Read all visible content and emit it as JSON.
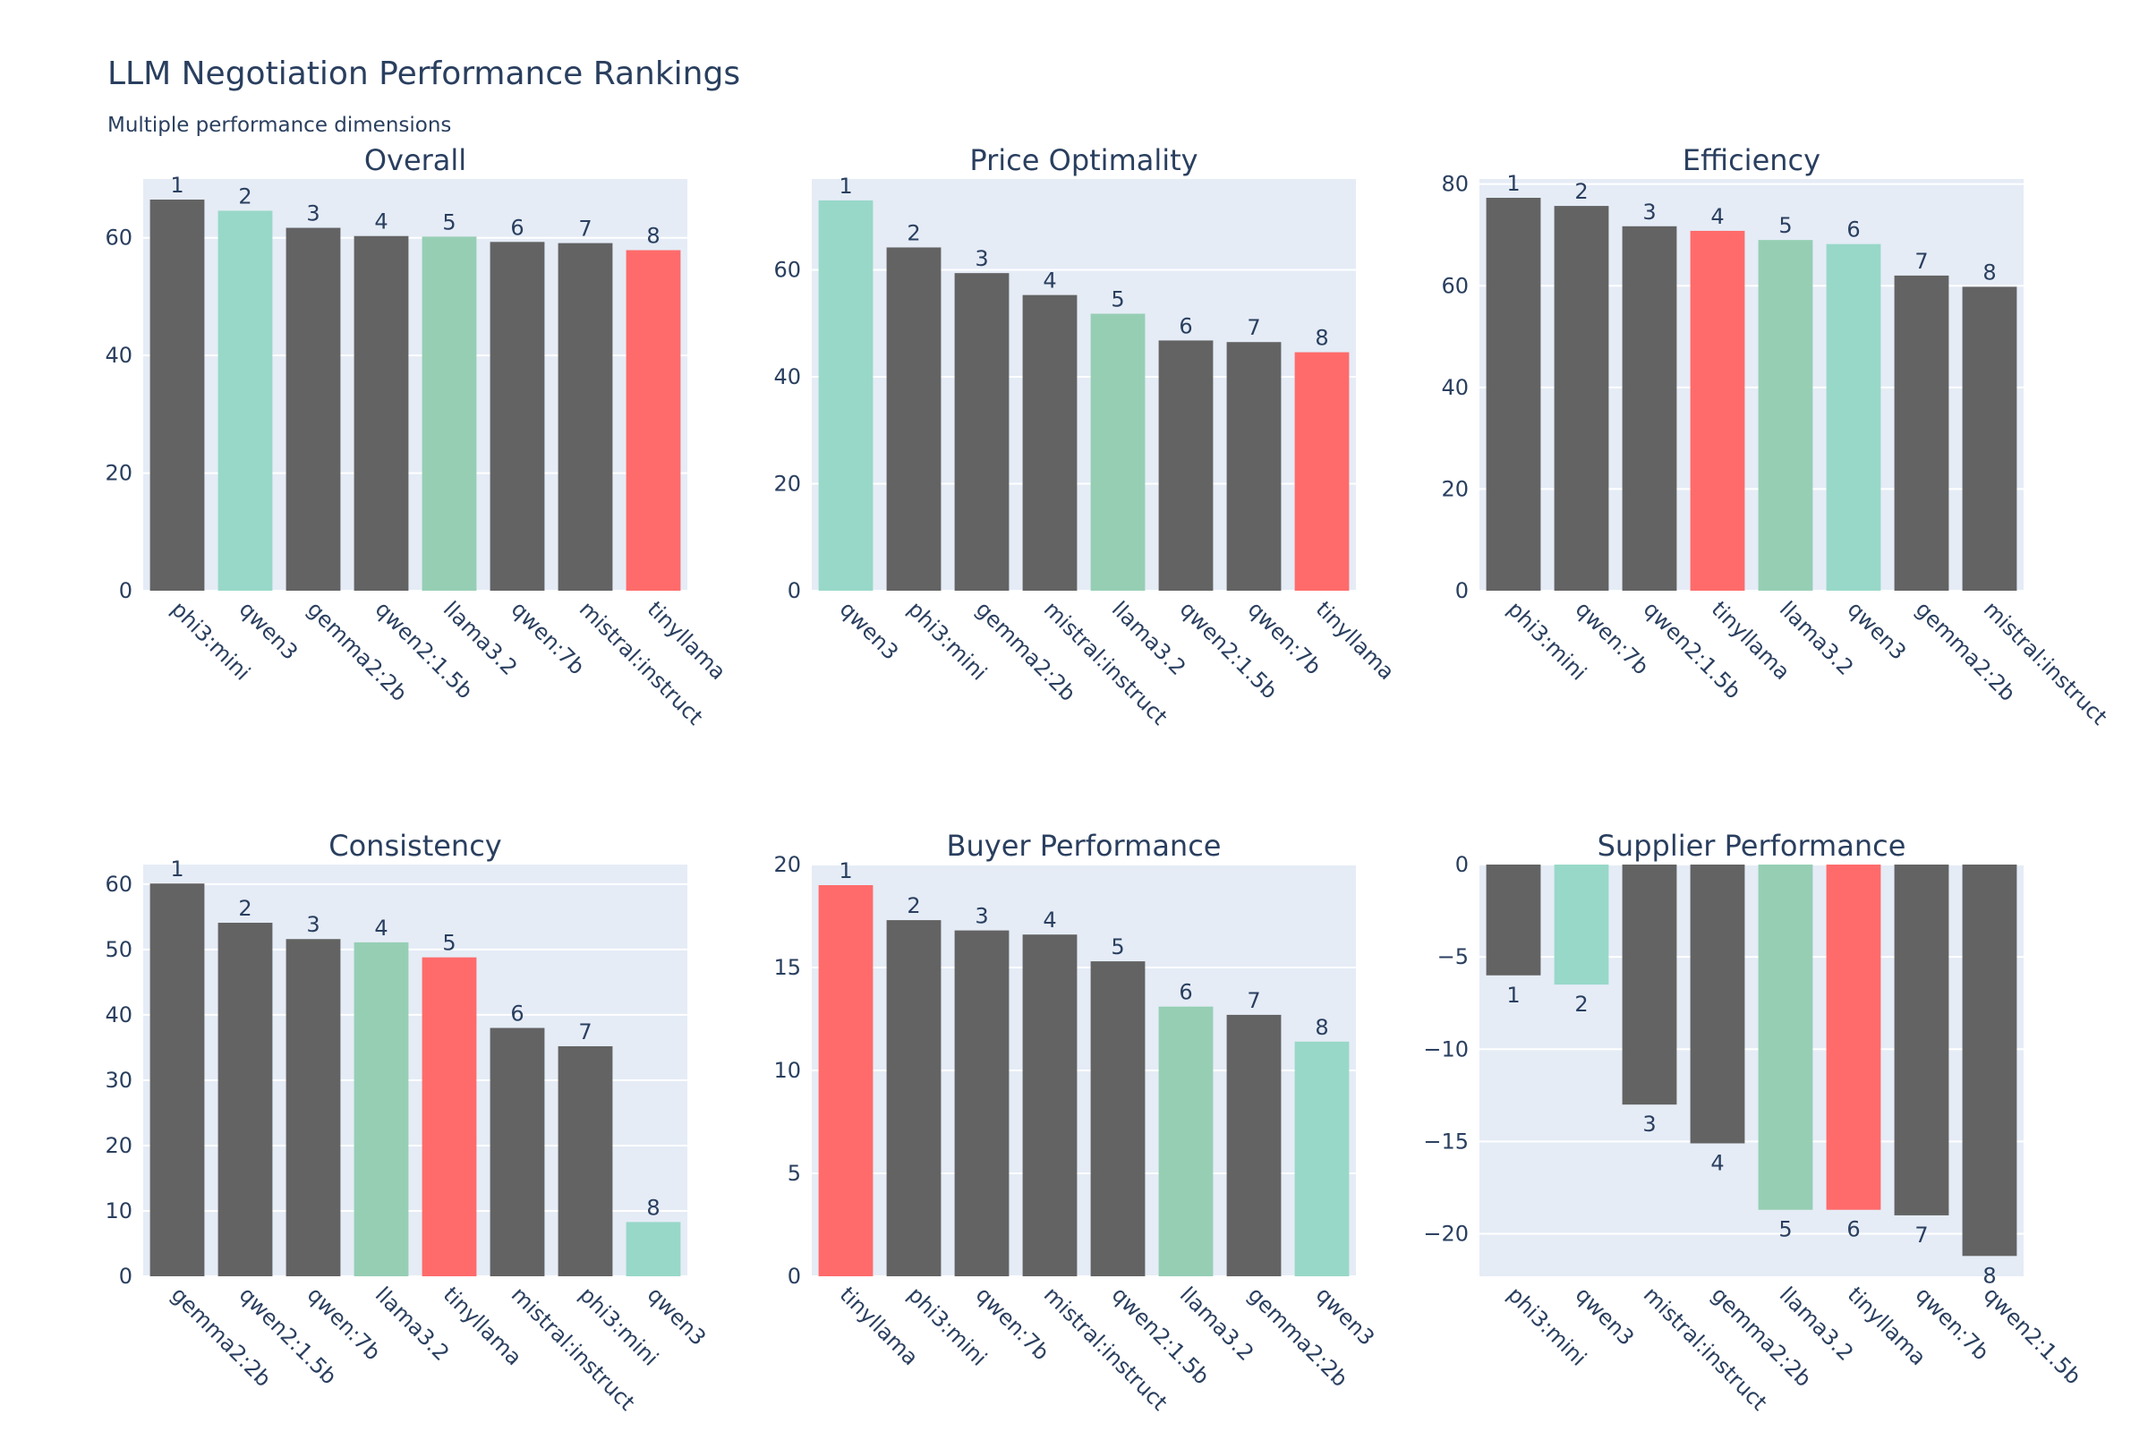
{
  "title": "LLM Negotiation Performance Rankings",
  "subtitle": "Multiple performance dimensions",
  "colors": {
    "default": "#636363",
    "qwen3": "#98d8c8",
    "llama3.2": "#96ceb4",
    "tinyllama": "#ff6b6b",
    "plot_bg": "#e5ecf6",
    "grid": "#ffffff",
    "text": "#2a3f5f"
  },
  "chart_data": [
    {
      "type": "bar",
      "title": "Overall",
      "categories": [
        "phi3:mini",
        "qwen3",
        "gemma2:2b",
        "qwen2:1.5b",
        "llama3.2",
        "qwen:7b",
        "mistral:instruct",
        "tinyllama"
      ],
      "values": [
        66.5,
        64.6,
        61.7,
        60.3,
        60.2,
        59.3,
        59.1,
        57.9
      ],
      "labels": [
        "1",
        "2",
        "3",
        "4",
        "5",
        "6",
        "7",
        "8"
      ],
      "ylim": [
        0,
        70
      ],
      "yticks": [
        0,
        20,
        40,
        60
      ]
    },
    {
      "type": "bar",
      "title": "Price Optimality",
      "categories": [
        "qwen3",
        "phi3:mini",
        "gemma2:2b",
        "mistral:instruct",
        "llama3.2",
        "qwen2:1.5b",
        "qwen:7b",
        "tinyllama"
      ],
      "values": [
        73.0,
        64.2,
        59.4,
        55.3,
        51.8,
        46.8,
        46.5,
        44.6
      ],
      "labels": [
        "1",
        "2",
        "3",
        "4",
        "5",
        "6",
        "7",
        "8"
      ],
      "ylim": [
        0,
        77
      ],
      "yticks": [
        0,
        20,
        40,
        60
      ]
    },
    {
      "type": "bar",
      "title": "Efficiency",
      "categories": [
        "phi3:mini",
        "qwen:7b",
        "qwen2:1.5b",
        "tinyllama",
        "llama3.2",
        "qwen3",
        "gemma2:2b",
        "mistral:instruct"
      ],
      "values": [
        77.3,
        75.7,
        71.7,
        70.8,
        69.0,
        68.2,
        62.0,
        59.8
      ],
      "labels": [
        "1",
        "2",
        "3",
        "4",
        "5",
        "6",
        "7",
        "8"
      ],
      "ylim": [
        0,
        81
      ],
      "yticks": [
        0,
        20,
        40,
        60,
        80
      ]
    },
    {
      "type": "bar",
      "title": "Consistency",
      "categories": [
        "gemma2:2b",
        "qwen2:1.5b",
        "qwen:7b",
        "llama3.2",
        "tinyllama",
        "mistral:instruct",
        "phi3:mini",
        "qwen3"
      ],
      "values": [
        60.1,
        54.1,
        51.6,
        51.1,
        48.8,
        38.0,
        35.2,
        8.3
      ],
      "labels": [
        "1",
        "2",
        "3",
        "4",
        "5",
        "6",
        "7",
        "8"
      ],
      "ylim": [
        0,
        63
      ],
      "yticks": [
        0,
        10,
        20,
        30,
        40,
        50,
        60
      ]
    },
    {
      "type": "bar",
      "title": "Buyer Performance",
      "categories": [
        "tinyllama",
        "phi3:mini",
        "qwen:7b",
        "mistral:instruct",
        "qwen2:1.5b",
        "llama3.2",
        "gemma2:2b",
        "qwen3"
      ],
      "values": [
        19.0,
        17.3,
        16.8,
        16.6,
        15.3,
        13.1,
        12.7,
        11.4
      ],
      "labels": [
        "1",
        "2",
        "3",
        "4",
        "5",
        "6",
        "7",
        "8"
      ],
      "ylim": [
        0,
        20
      ],
      "yticks": [
        0,
        5,
        10,
        15,
        20
      ]
    },
    {
      "type": "bar",
      "title": "Supplier Performance",
      "categories": [
        "phi3:mini",
        "qwen3",
        "mistral:instruct",
        "gemma2:2b",
        "llama3.2",
        "tinyllama",
        "qwen:7b",
        "qwen2:1.5b"
      ],
      "values": [
        -6.0,
        -6.5,
        -13.0,
        -15.1,
        -18.7,
        -18.7,
        -19.0,
        -21.2
      ],
      "labels": [
        "1",
        "2",
        "3",
        "4",
        "5",
        "6",
        "7",
        "8"
      ],
      "ylim": [
        -22.3,
        0
      ],
      "yticks": [
        -20,
        -15,
        -10,
        -5,
        0
      ]
    }
  ]
}
